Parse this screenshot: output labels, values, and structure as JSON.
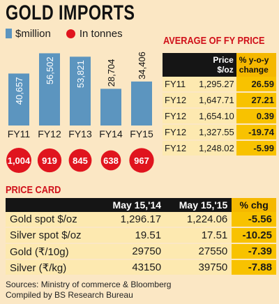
{
  "title": "GOLD IMPORTS",
  "legend": {
    "bar_label": "$million",
    "dot_label": "In tonnes"
  },
  "colors": {
    "bar": "#5c95bf",
    "dot": "#e0141e",
    "heading_red": "#d0101a",
    "highlight": "#f8c200",
    "dark": "#151515",
    "background": "#fbe7c4"
  },
  "chart_data": {
    "type": "bar",
    "categories": [
      "FY11",
      "FY12",
      "FY13",
      "FY14",
      "FY15"
    ],
    "series": [
      {
        "name": "$million",
        "values": [
          40657,
          56502,
          53821,
          28704,
          34406
        ],
        "labels": [
          "40,657",
          "56,502",
          "53,821",
          "28,704",
          "34,406"
        ]
      },
      {
        "name": "In tonnes",
        "values": [
          1004,
          919,
          845,
          638,
          967
        ],
        "labels": [
          "1,004",
          "919",
          "845",
          "638",
          "967"
        ]
      }
    ],
    "ylim": [
      0,
      60000
    ]
  },
  "avg_fy_price": {
    "title": "AVERAGE OF FY PRICE",
    "headers": {
      "price_line1": "Price",
      "price_line2": "$/oz",
      "chg_line1": "% y-o-y",
      "chg_line2": "change"
    },
    "rows": [
      {
        "fy": "FY11",
        "price": "1,295.27",
        "change": "26.59"
      },
      {
        "fy": "FY12",
        "price": "1,647.71",
        "change": "27.21"
      },
      {
        "fy": "FY12",
        "price": "1,654.10",
        "change": "0.39"
      },
      {
        "fy": "FY12",
        "price": "1,327.55",
        "change": "-19.74"
      },
      {
        "fy": "FY12",
        "price": "1,248.02",
        "change": "-5.99"
      }
    ]
  },
  "price_card": {
    "title": "PRICE CARD",
    "headers": {
      "item": "",
      "may14": "May 15,'14",
      "may15": "May 15,'15",
      "chg": "% chg"
    },
    "rows": [
      {
        "item": "Gold spot $/oz",
        "may14": "1,296.17",
        "may15": "1,224.06",
        "chg": "-5.56"
      },
      {
        "item": "Silver spot  $/oz",
        "may14": "19.51",
        "may15": "17.51",
        "chg": "-10.25"
      },
      {
        "item": "Gold (₹/10g)",
        "may14": "29750",
        "may15": "27550",
        "chg": "-7.39"
      },
      {
        "item": "Silver (₹/kg)",
        "may14": "43150",
        "may15": "39750",
        "chg": "-7.88"
      }
    ]
  },
  "sources": {
    "line1": "Sources: Ministry of commerce & Bloomberg",
    "line2": "Compiled by BS Research Bureau"
  }
}
